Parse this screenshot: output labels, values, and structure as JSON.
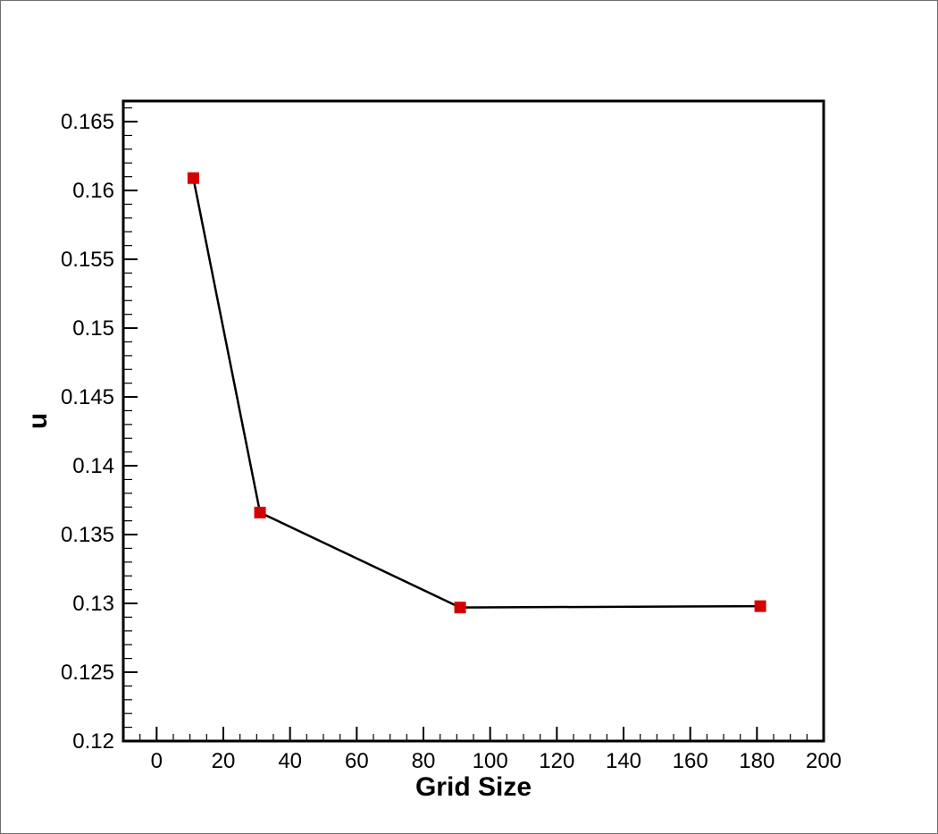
{
  "chart_data": {
    "type": "line",
    "title": "",
    "xlabel": "Grid Size",
    "ylabel": "u",
    "xlim": [
      -10,
      200
    ],
    "ylim": [
      0.12,
      0.1665
    ],
    "x_ticks": [
      0,
      20,
      40,
      60,
      80,
      100,
      120,
      140,
      160,
      180,
      200
    ],
    "x_tick_labels": [
      "0",
      "20",
      "40",
      "60",
      "80",
      "100",
      "120",
      "140",
      "160",
      "180",
      "200"
    ],
    "y_ticks": [
      0.12,
      0.125,
      0.13,
      0.135,
      0.14,
      0.145,
      0.15,
      0.155,
      0.16,
      0.165
    ],
    "y_tick_labels": [
      "0.12",
      "0.125",
      "0.13",
      "0.135",
      "0.14",
      "0.145",
      "0.15",
      "0.155",
      "0.16",
      "0.165"
    ],
    "grid": false,
    "legend": "none",
    "series": [
      {
        "x": [
          11,
          31,
          91,
          181
        ],
        "y": [
          0.1609,
          0.1366,
          0.1297,
          0.1298
        ],
        "line_color": "#000000",
        "marker": "square",
        "marker_color": "#d40000"
      }
    ]
  }
}
